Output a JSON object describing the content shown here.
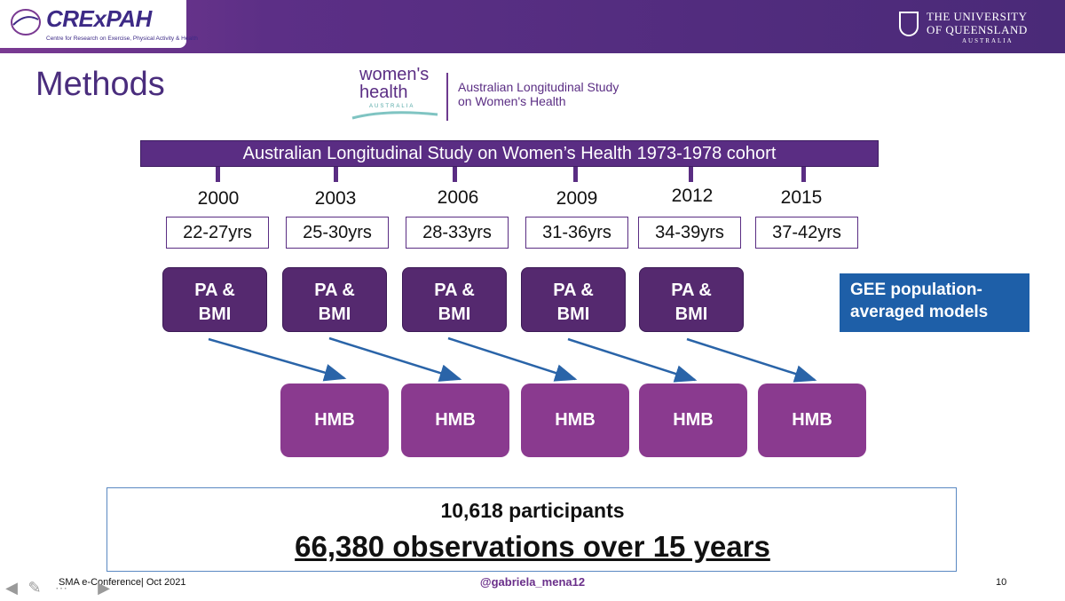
{
  "header": {
    "org_logo_title": "CRExPAH",
    "org_logo_subtitle": "Centre for Research on Exercise, Physical Activity & Health",
    "uni_line1": "THE UNIVERSITY",
    "uni_line2": "OF QUEENSLAND",
    "uni_line3": "AUSTRALIA"
  },
  "slide": {
    "title": "Methods",
    "partner_logo": {
      "brand": "women's health",
      "brand_sub": "AUSTRALIA",
      "line1": "Australian Longitudinal Study",
      "line2": "on Women's Health"
    },
    "banner": "Australian Longitudinal Study on Women’s Health 1973-1978 cohort",
    "waves": [
      {
        "year": "2000",
        "age": "22-27yrs",
        "pa": "PA &",
        "bmi": "BMI"
      },
      {
        "year": "2003",
        "age": "25-30yrs",
        "pa": "PA &",
        "bmi": "BMI"
      },
      {
        "year": "2006",
        "age": "28-33yrs",
        "pa": "PA &",
        "bmi": "BMI"
      },
      {
        "year": "2009",
        "age": "31-36yrs",
        "pa": "PA &",
        "bmi": "BMI"
      },
      {
        "year": "2012",
        "age": "34-39yrs",
        "pa": "PA &",
        "bmi": "BMI"
      },
      {
        "year": "2015",
        "age": "37-42yrs"
      }
    ],
    "outcome_label": "HMB",
    "method_box": {
      "line1": "GEE population-",
      "line2": "averaged models"
    },
    "summary": {
      "participants": "10,618 participants",
      "observations": "66,380 observations over 15 years"
    }
  },
  "footer": {
    "left": "SMA e-Conference| Oct 2021",
    "center": "@gabriela_mena12",
    "page": "10"
  },
  "controls": [
    "arrow-left-icon",
    "pen-icon",
    "more-icon",
    "arrow-right-icon"
  ],
  "colors": {
    "purple_dark": "#5a2d83",
    "purple_box": "#55296f",
    "magenta_box": "#8a3a8f",
    "gee_blue": "#1e5fa8",
    "arrow_blue": "#2a64a8"
  }
}
